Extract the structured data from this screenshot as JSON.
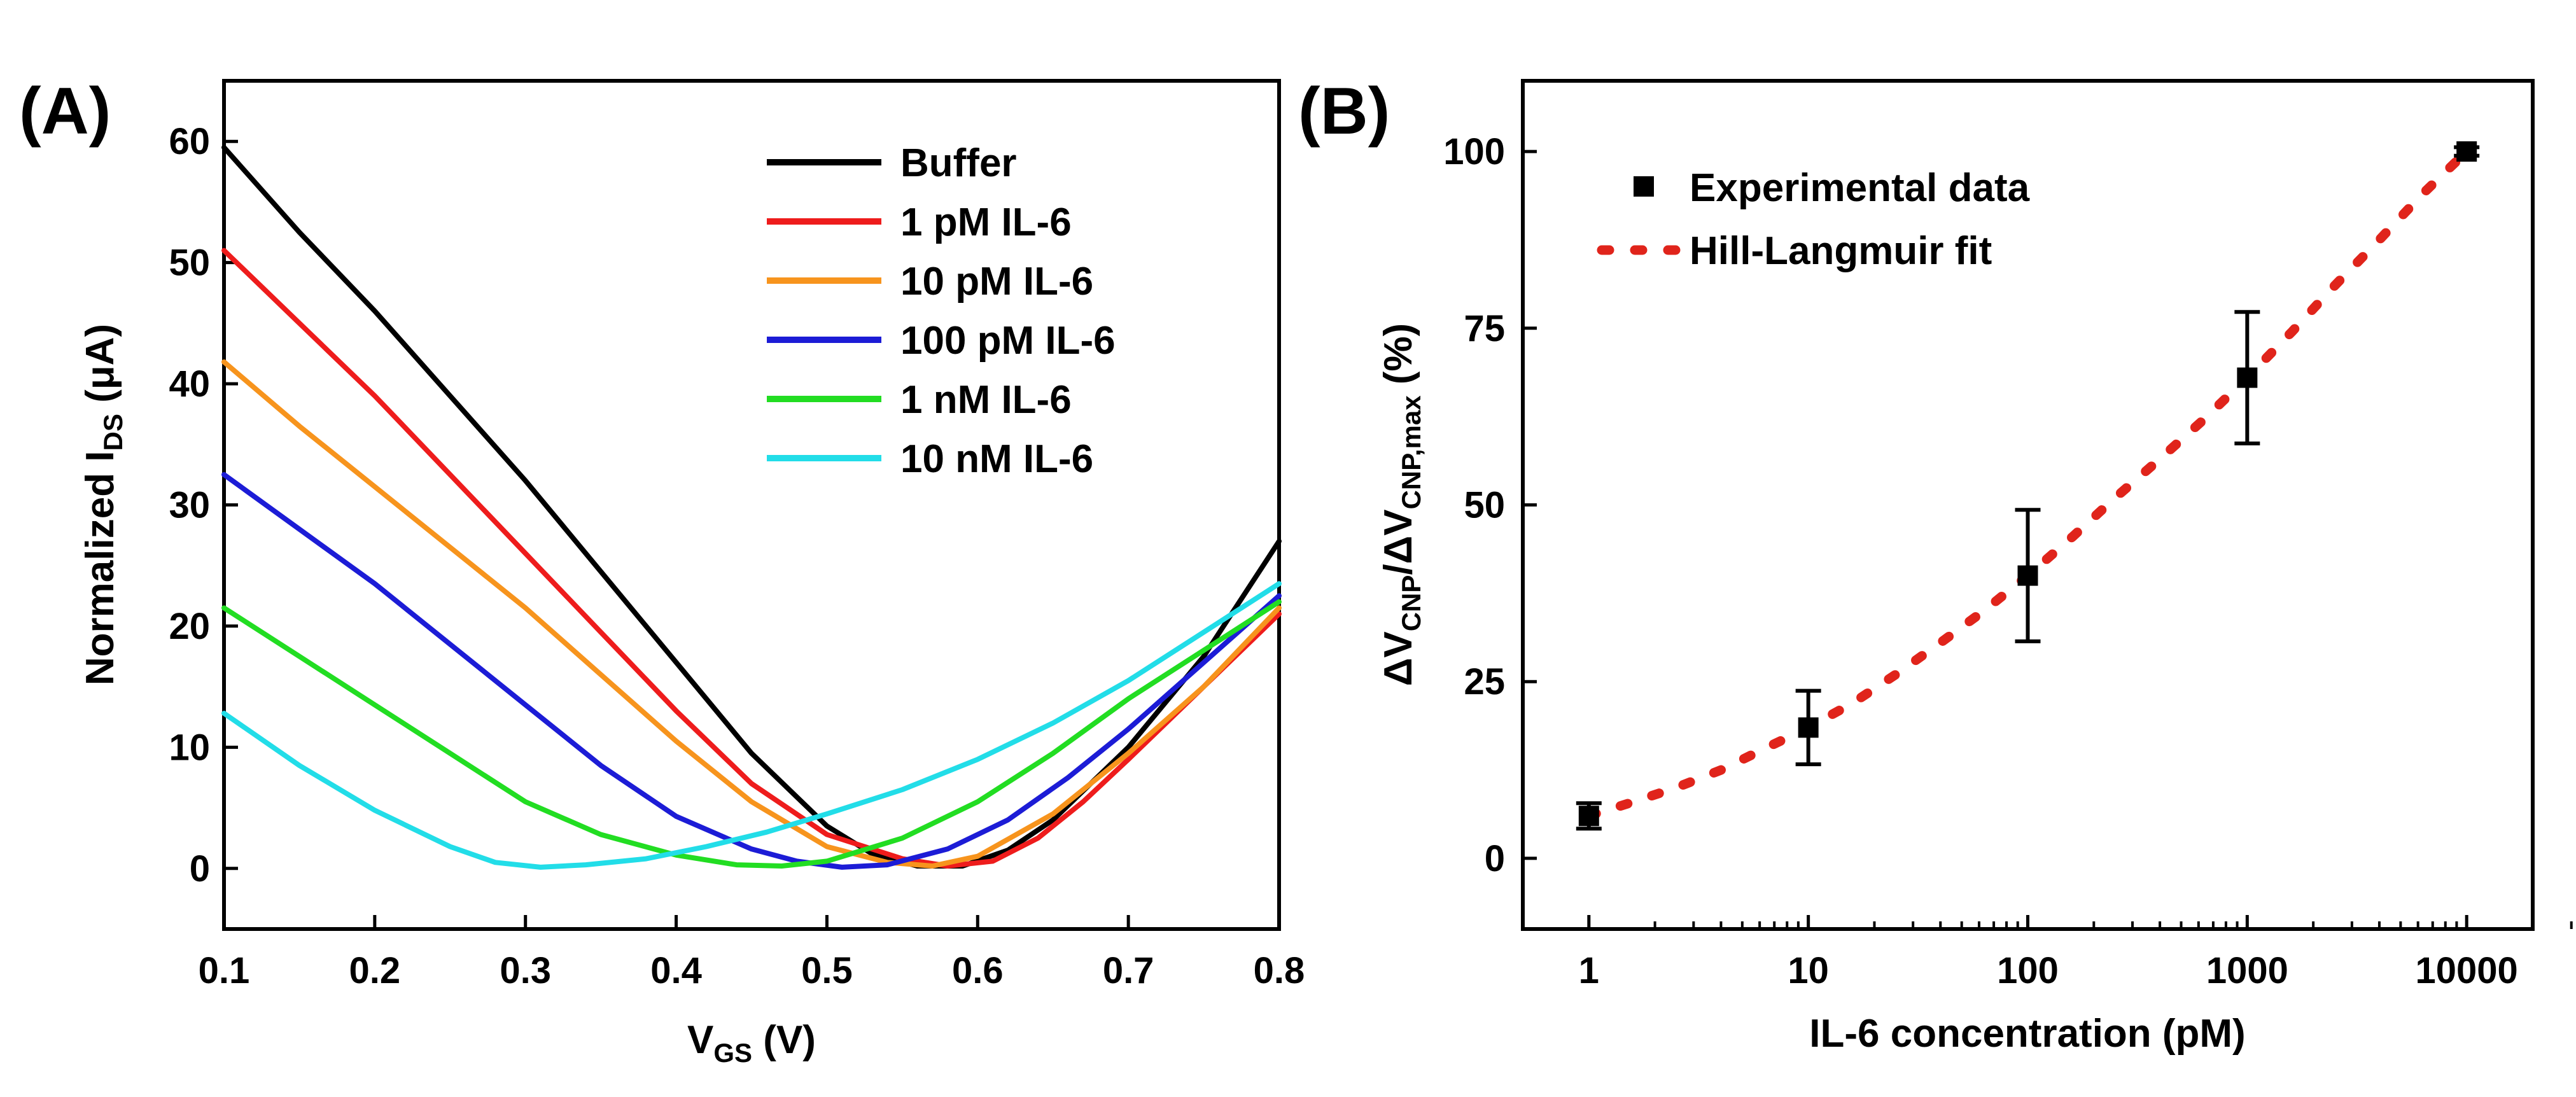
{
  "chart_data": [
    {
      "panel": "(A)",
      "type": "line",
      "xlabel_main": "V",
      "xlabel_sub": "GS",
      "xlabel_unit": " (V)",
      "ylabel_main": "Normalized I",
      "ylabel_sub": "DS",
      "ylabel_unit": " (μA)",
      "xlim": [
        0.1,
        0.8
      ],
      "ylim": [
        -5,
        65
      ],
      "xticks": [
        "0.1",
        "0.2",
        "0.3",
        "0.4",
        "0.5",
        "0.6",
        "0.7",
        "0.8"
      ],
      "yticks": [
        "0",
        "10",
        "20",
        "30",
        "40",
        "50",
        "60"
      ],
      "legend_position": "top-right",
      "series": [
        {
          "name": "Buffer",
          "color": "#000000",
          "x": [
            0.1,
            0.15,
            0.2,
            0.25,
            0.3,
            0.35,
            0.4,
            0.45,
            0.5,
            0.53,
            0.56,
            0.59,
            0.62,
            0.65,
            0.7,
            0.75,
            0.8
          ],
          "y": [
            59.5,
            52.5,
            46,
            39,
            32,
            24.5,
            17,
            9.5,
            3.5,
            1.2,
            0.2,
            0.2,
            1.5,
            4,
            10,
            17.5,
            27
          ]
        },
        {
          "name": "1 pM IL-6",
          "color": "#ee1c1c",
          "x": [
            0.1,
            0.15,
            0.2,
            0.25,
            0.3,
            0.35,
            0.4,
            0.45,
            0.5,
            0.55,
            0.58,
            0.61,
            0.64,
            0.67,
            0.7,
            0.75,
            0.8
          ],
          "y": [
            51,
            45,
            39,
            32.5,
            26,
            19.5,
            13,
            7,
            2.8,
            0.8,
            0.2,
            0.6,
            2.5,
            5.5,
            9,
            15,
            21
          ]
        },
        {
          "name": "10 pM IL-6",
          "color": "#f7941d",
          "x": [
            0.1,
            0.15,
            0.2,
            0.25,
            0.3,
            0.35,
            0.4,
            0.45,
            0.5,
            0.54,
            0.57,
            0.6,
            0.65,
            0.7,
            0.75,
            0.8
          ],
          "y": [
            41.8,
            36.5,
            31.5,
            26.5,
            21.5,
            16,
            10.5,
            5.5,
            1.8,
            0.5,
            0.2,
            1,
            4.5,
            9.5,
            15,
            21.5
          ]
        },
        {
          "name": "100 pM IL-6",
          "color": "#1c1cd6",
          "x": [
            0.1,
            0.15,
            0.2,
            0.25,
            0.3,
            0.35,
            0.4,
            0.45,
            0.48,
            0.51,
            0.54,
            0.58,
            0.62,
            0.66,
            0.7,
            0.75,
            0.8
          ],
          "y": [
            32.5,
            28,
            23.5,
            18.5,
            13.5,
            8.5,
            4.3,
            1.6,
            0.6,
            0.1,
            0.3,
            1.6,
            4,
            7.5,
            11.5,
            17,
            22.5
          ]
        },
        {
          "name": "1 nM IL-6",
          "color": "#22dd22",
          "x": [
            0.1,
            0.15,
            0.2,
            0.25,
            0.3,
            0.35,
            0.4,
            0.44,
            0.47,
            0.5,
            0.55,
            0.6,
            0.65,
            0.7,
            0.75,
            0.8
          ],
          "y": [
            21.5,
            17.5,
            13.5,
            9.5,
            5.5,
            2.8,
            1.1,
            0.3,
            0.2,
            0.6,
            2.5,
            5.5,
            9.5,
            14,
            18,
            22
          ]
        },
        {
          "name": "10 nM IL-6",
          "color": "#22dde8",
          "x": [
            0.1,
            0.15,
            0.2,
            0.25,
            0.28,
            0.31,
            0.34,
            0.38,
            0.42,
            0.46,
            0.5,
            0.55,
            0.6,
            0.65,
            0.7,
            0.75,
            0.8
          ],
          "y": [
            12.8,
            8.5,
            4.8,
            1.8,
            0.5,
            0.1,
            0.3,
            0.8,
            1.8,
            3,
            4.5,
            6.5,
            9,
            12,
            15.5,
            19.5,
            23.5
          ]
        }
      ]
    },
    {
      "panel": "(B)",
      "type": "scatter",
      "xlabel": "IL-6 concentration (pM)",
      "ylabel_pre": "ΔV",
      "ylabel_sub1": "CNP",
      "ylabel_mid": "/ΔV",
      "ylabel_sub2": "CNP,max",
      "ylabel_post": " (%)",
      "xscale": "log",
      "xlim": [
        0.5,
        20000
      ],
      "ylim": [
        -10,
        110
      ],
      "xticks": [
        1,
        10,
        100,
        1000,
        10000
      ],
      "xtick_labels": [
        "1",
        "10",
        "100",
        "1000",
        "10000"
      ],
      "yticks": [
        0,
        25,
        50,
        75,
        100
      ],
      "ytick_labels": [
        "0",
        "25",
        "50",
        "75",
        "100"
      ],
      "legend_position": "top-left",
      "legend": [
        "Experimental data",
        "Hill-Langmuir fit"
      ],
      "data_color": "#000000",
      "fit_color": "#e0241b",
      "points": [
        {
          "x": 1,
          "y": 6,
          "err": 1.8
        },
        {
          "x": 10,
          "y": 18.5,
          "err": 5.2
        },
        {
          "x": 100,
          "y": 40,
          "err": 9.3
        },
        {
          "x": 1000,
          "y": 68,
          "err": 9.3
        },
        {
          "x": 10000,
          "y": 100,
          "err": 0.6
        }
      ],
      "fit": {
        "x": [
          1,
          1.6,
          2.5,
          4,
          6.3,
          10,
          16,
          25,
          40,
          63,
          100,
          160,
          250,
          400,
          630,
          1000,
          1600,
          2500,
          4000,
          6300,
          10000
        ],
        "y": [
          6,
          8,
          10,
          12.5,
          15.5,
          18.5,
          22,
          26,
          30.5,
          35,
          40,
          45.5,
          51,
          56.5,
          62,
          68,
          74.5,
          81,
          87.5,
          94,
          100
        ]
      }
    }
  ]
}
